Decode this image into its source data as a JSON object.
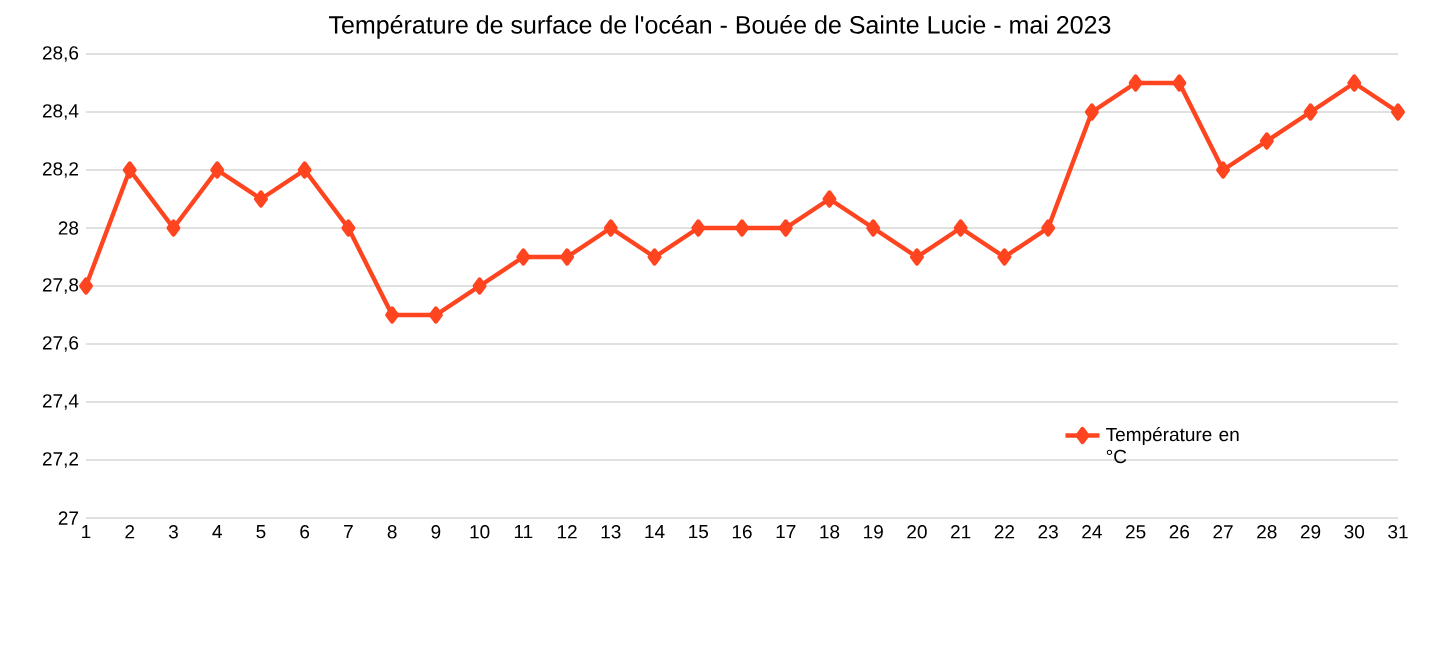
{
  "chart_data": {
    "type": "line",
    "title": "Température de surface de l'océan - Bouée de Sainte Lucie - mai 2023",
    "categories": [
      "1",
      "2",
      "3",
      "4",
      "5",
      "6",
      "7",
      "8",
      "9",
      "10",
      "11",
      "12",
      "13",
      "14",
      "15",
      "16",
      "17",
      "18",
      "19",
      "20",
      "21",
      "22",
      "23",
      "24",
      "25",
      "26",
      "27",
      "28",
      "29",
      "30",
      "31"
    ],
    "series": [
      {
        "name": "Température en °C",
        "color": "#ff4420",
        "values": [
          27.8,
          28.2,
          28.0,
          28.2,
          28.1,
          28.2,
          28.0,
          27.7,
          27.7,
          27.8,
          27.9,
          27.9,
          28.0,
          27.9,
          28.0,
          28.0,
          28.0,
          28.1,
          28.0,
          27.9,
          28.0,
          27.9,
          28.0,
          28.4,
          28.5,
          28.5,
          28.2,
          28.3,
          28.4,
          28.5,
          28.4
        ]
      }
    ],
    "ylim": [
      27,
      28.6
    ],
    "yticks": [
      {
        "value": 27,
        "label": "27"
      },
      {
        "value": 27.2,
        "label": "27,2"
      },
      {
        "value": 27.4,
        "label": "27,4"
      },
      {
        "value": 27.6,
        "label": "27,6"
      },
      {
        "value": 27.8,
        "label": "27,8"
      },
      {
        "value": 28,
        "label": "28"
      },
      {
        "value": 28.2,
        "label": "28,2"
      },
      {
        "value": 28.4,
        "label": "28,4"
      },
      {
        "value": 28.6,
        "label": "28,6"
      }
    ],
    "grid": "y",
    "legend": "right",
    "marker": "diamond",
    "line_style": "solid"
  }
}
